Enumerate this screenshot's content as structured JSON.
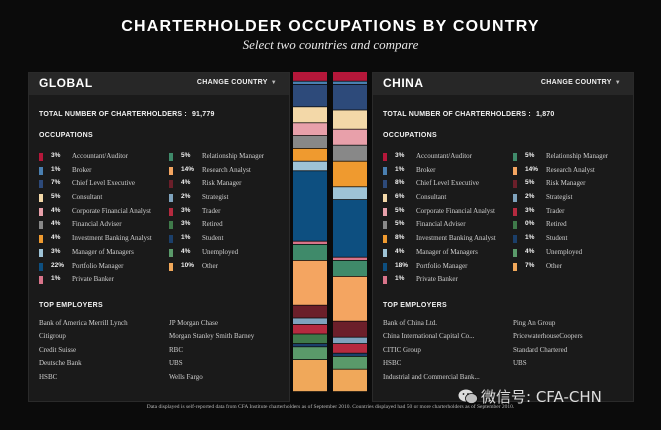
{
  "title": "CHARTERHOLDER OCCUPATIONS BY COUNTRY",
  "subtitle": "Select two countries and compare",
  "change_country_label": "CHANGE COUNTRY",
  "total_label": "TOTAL NUMBER OF CHARTERHOLDERS :",
  "occupations_heading": "OCCUPATIONS",
  "employers_heading": "TOP EMPLOYERS",
  "footnote": "Data displayed is self-reported data from CFA Institute charterholders as of September 2010. Countries displayed had 50 or more charterholders as of September 2010.",
  "watermark": "微信号: CFA-CHN",
  "colors": {
    "Accountant/Auditor": "#b5173a",
    "Broker": "#4a7fb0",
    "Chief Level Executive": "#2d4a7a",
    "Consultant": "#f3d8a8",
    "Corporate Financial Analyst": "#e8a0aa",
    "Financial Advisor": "#1f7a45",
    "Investment Banking Analyst": "#ef9a2f",
    "Manager of Managers": "#9ec3d6",
    "Portfolio Manager": "#0d4f80",
    "Private Banker": "#d9748a",
    "Relationship Manager": "#3f8a6a",
    "Research Analyst": "#f4a561",
    "Risk Manager": "#6b1f2a",
    "Strategist": "#7fa3bd",
    "Trader": "#b52a3f",
    "Retired": "#3f7a4a",
    "Student": "#1b3f6a",
    "Unemployed": "#5a9a6a",
    "Other": "#f0a85a"
  },
  "panels": [
    {
      "name": "GLOBAL",
      "total": "91,779",
      "occupations": [
        {
          "label": "Accountant/Auditor",
          "pct": "3%"
        },
        {
          "label": "Broker",
          "pct": "1%"
        },
        {
          "label": "Chief Level Executive",
          "pct": "7%"
        },
        {
          "label": "Consultant",
          "pct": "5%"
        },
        {
          "label": "Corporate Financial Analyst",
          "pct": "4%"
        },
        {
          "label": "Financial Adviser",
          "pct": "4%"
        },
        {
          "label": "Investment Banking Analyst",
          "pct": "4%"
        },
        {
          "label": "Manager of Managers",
          "pct": "3%"
        },
        {
          "label": "Portfolio Manager",
          "pct": "22%"
        },
        {
          "label": "Private Banker",
          "pct": "1%"
        },
        {
          "label": "Relationship Manager",
          "pct": "5%"
        },
        {
          "label": "Research Analyst",
          "pct": "14%"
        },
        {
          "label": "Risk Manager",
          "pct": "4%"
        },
        {
          "label": "Strategist",
          "pct": "2%"
        },
        {
          "label": "Trader",
          "pct": "3%"
        },
        {
          "label": "Retired",
          "pct": "3%"
        },
        {
          "label": "Student",
          "pct": "1%"
        },
        {
          "label": "Unemployed",
          "pct": "4%"
        },
        {
          "label": "Other",
          "pct": "10%"
        }
      ],
      "employers": [
        "Bank of America Merrill Lynch",
        "Citigroup",
        "Credit Suisse",
        "Deutsche Bank",
        "HSBC",
        "JP Morgan Chase",
        "Morgan Stanley Smith Barney",
        "RBC",
        "UBS",
        "Wells Fargo"
      ]
    },
    {
      "name": "CHINA",
      "total": "1,870",
      "occupations": [
        {
          "label": "Accountant/Auditor",
          "pct": "3%"
        },
        {
          "label": "Broker",
          "pct": "1%"
        },
        {
          "label": "Chief Level Executive",
          "pct": "8%"
        },
        {
          "label": "Consultant",
          "pct": "6%"
        },
        {
          "label": "Corporate Financial Analyst",
          "pct": "5%"
        },
        {
          "label": "Financial Adviser",
          "pct": "5%"
        },
        {
          "label": "Investment Banking Analyst",
          "pct": "8%"
        },
        {
          "label": "Manager of Managers",
          "pct": "4%"
        },
        {
          "label": "Portfolio Manager",
          "pct": "18%"
        },
        {
          "label": "Private Banker",
          "pct": "1%"
        },
        {
          "label": "Relationship Manager",
          "pct": "5%"
        },
        {
          "label": "Research Analyst",
          "pct": "14%"
        },
        {
          "label": "Risk Manager",
          "pct": "5%"
        },
        {
          "label": "Strategist",
          "pct": "2%"
        },
        {
          "label": "Trader",
          "pct": "3%"
        },
        {
          "label": "Retired",
          "pct": "0%"
        },
        {
          "label": "Student",
          "pct": "1%"
        },
        {
          "label": "Unemployed",
          "pct": "4%"
        },
        {
          "label": "Other",
          "pct": "7%"
        }
      ],
      "employers": [
        "Bank of China Ltd.",
        "China International Capital Co...",
        "CITIC Group",
        "HSBC",
        "Industrial and Commercial Bank...",
        "Ping An Group",
        "PricewaterhouseCoopers",
        "Standard Chartered",
        "UBS",
        ""
      ]
    }
  ],
  "chart_data": {
    "type": "bar",
    "title": "CHARTERHOLDER OCCUPATIONS BY COUNTRY",
    "categories": [
      "Accountant/Auditor",
      "Broker",
      "Chief Level Executive",
      "Consultant",
      "Corporate Financial Analyst",
      "Financial Adviser",
      "Investment Banking Analyst",
      "Manager of Managers",
      "Portfolio Manager",
      "Private Banker",
      "Relationship Manager",
      "Research Analyst",
      "Risk Manager",
      "Strategist",
      "Trader",
      "Retired",
      "Student",
      "Unemployed",
      "Other"
    ],
    "series": [
      {
        "name": "GLOBAL",
        "values": [
          3,
          1,
          7,
          5,
          4,
          4,
          4,
          3,
          22,
          1,
          5,
          14,
          4,
          2,
          3,
          3,
          1,
          4,
          10
        ]
      },
      {
        "name": "CHINA",
        "values": [
          3,
          1,
          8,
          6,
          5,
          5,
          8,
          4,
          18,
          1,
          5,
          14,
          5,
          2,
          3,
          0,
          1,
          4,
          7
        ]
      }
    ],
    "stacked": true,
    "orientation": "vertical",
    "ylim": [
      0,
      100
    ],
    "grid": false,
    "legend": "none"
  }
}
